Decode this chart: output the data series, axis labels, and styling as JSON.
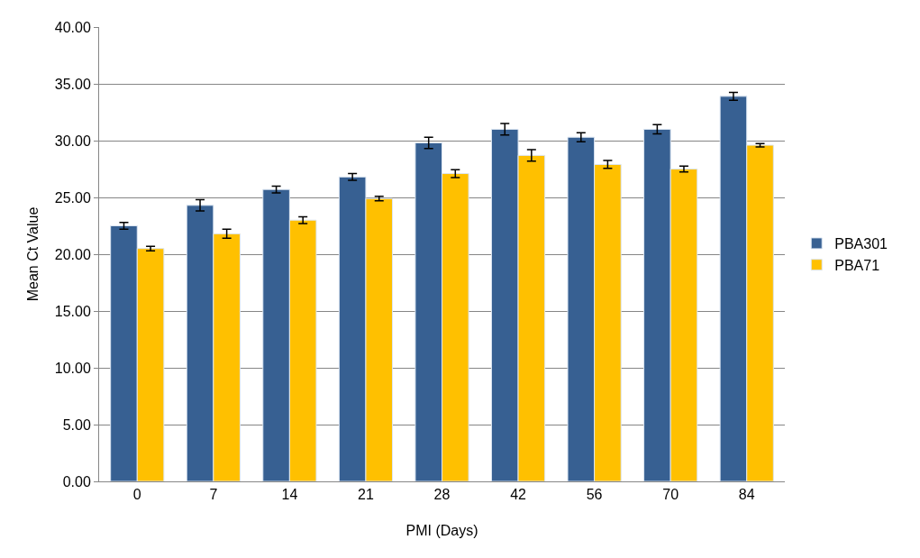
{
  "chart_data": {
    "type": "bar",
    "xlabel": "PMI (Days)",
    "ylabel": "Mean Ct Value",
    "categories": [
      "0",
      "7",
      "14",
      "21",
      "28",
      "42",
      "56",
      "70",
      "84"
    ],
    "series": [
      {
        "name": "PBA301",
        "color": "#376092",
        "values": [
          22.5,
          24.3,
          25.7,
          26.8,
          29.8,
          31.0,
          30.3,
          31.0,
          33.9
        ],
        "errors": [
          0.3,
          0.5,
          0.3,
          0.3,
          0.5,
          0.5,
          0.4,
          0.4,
          0.35
        ]
      },
      {
        "name": "PBA71",
        "color": "#ffc000",
        "values": [
          20.5,
          21.8,
          23.0,
          24.9,
          27.1,
          28.7,
          27.9,
          27.5,
          29.6
        ],
        "errors": [
          0.2,
          0.4,
          0.3,
          0.2,
          0.35,
          0.5,
          0.35,
          0.25,
          0.15
        ]
      }
    ],
    "ylim": [
      0,
      40
    ],
    "yticks": [
      {
        "value": 0,
        "label": "0.00"
      },
      {
        "value": 5,
        "label": "5.00"
      },
      {
        "value": 10,
        "label": "10.00"
      },
      {
        "value": 15,
        "label": "15.00"
      },
      {
        "value": 20,
        "label": "20.00"
      },
      {
        "value": 25,
        "label": "25.00"
      },
      {
        "value": 30,
        "label": "30.00"
      },
      {
        "value": 35,
        "label": "35.00"
      },
      {
        "value": 40,
        "label": "40.00"
      }
    ],
    "grid": "y",
    "legend": "right"
  }
}
